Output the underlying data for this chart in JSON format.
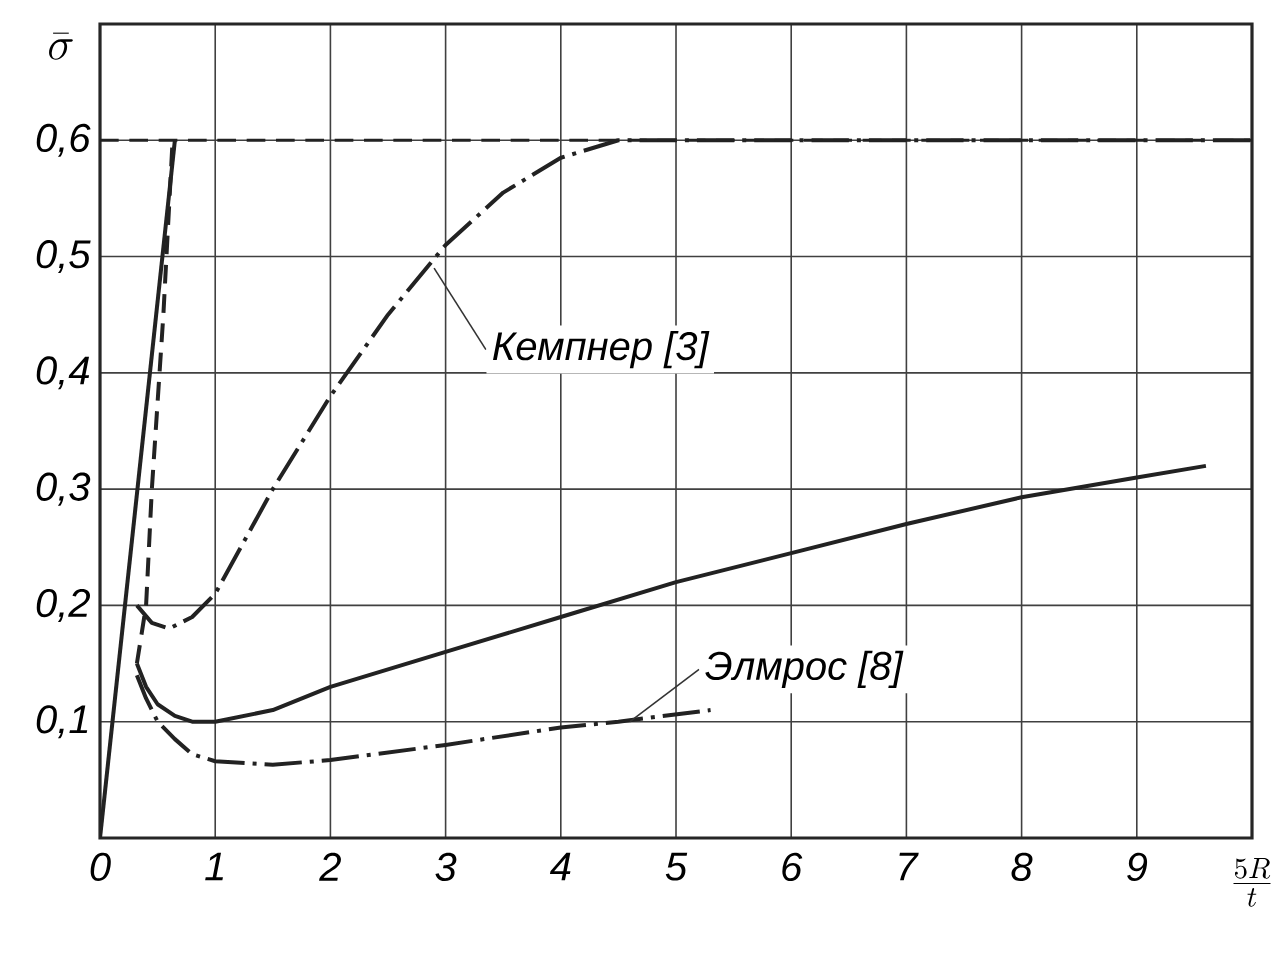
{
  "chart_data": {
    "type": "line",
    "xlabel": "\\frac{5R}{t}",
    "ylabel": "\\bar{\\sigma}",
    "xlim": [
      0,
      10
    ],
    "ylim": [
      0,
      0.7
    ],
    "xticks": [
      0,
      1,
      2,
      3,
      4,
      5,
      6,
      7,
      8,
      9,
      {
        "value": 10,
        "label": null
      }
    ],
    "yticks": [
      {
        "value": 0.1,
        "label": "0,1"
      },
      {
        "value": 0.2,
        "label": "0,2"
      },
      {
        "value": 0.3,
        "label": "0,3"
      },
      {
        "value": 0.4,
        "label": "0,4"
      },
      {
        "value": 0.5,
        "label": "0,5"
      },
      {
        "value": 0.6,
        "label": "0,6"
      },
      {
        "value": 0.7,
        "label": null
      }
    ],
    "grid": true,
    "ref_lines": [
      {
        "axis": "y",
        "value": 0.6,
        "line_style": "dashed",
        "color": "#222222"
      }
    ],
    "series": [
      {
        "color": "#222222",
        "line_style": "solid",
        "x": [
          0,
          0.65
        ],
        "values": [
          0,
          0.6
        ]
      },
      {
        "color": "#222222",
        "line_style": "dashed",
        "x": [
          0.32,
          0.4,
          0.45,
          0.55,
          0.63
        ],
        "values": [
          0.15,
          0.2,
          0.3,
          0.45,
          0.6
        ]
      },
      {
        "color": "#222222",
        "line_style": "dashdot",
        "x": [
          0.32,
          0.45,
          0.6,
          0.8,
          1,
          1.5,
          2,
          2.5,
          3,
          3.5,
          4,
          4.5,
          5,
          6,
          7,
          8,
          9,
          10
        ],
        "values": [
          0.2,
          0.185,
          0.18,
          0.19,
          0.21,
          0.3,
          0.38,
          0.45,
          0.51,
          0.555,
          0.585,
          0.6,
          0.6,
          0.6,
          0.6,
          0.6,
          0.6,
          0.6
        ]
      },
      {
        "color": "#222222",
        "line_style": "solid",
        "x": [
          0.32,
          0.4,
          0.5,
          0.65,
          0.8,
          1,
          1.5,
          2,
          3,
          4,
          5,
          6,
          7,
          8,
          9,
          9.6
        ],
        "values": [
          0.15,
          0.13,
          0.115,
          0.105,
          0.1,
          0.1,
          0.11,
          0.13,
          0.16,
          0.19,
          0.22,
          0.245,
          0.27,
          0.293,
          0.31,
          0.32
        ]
      },
      {
        "color": "#222222",
        "line_style": "dashdot",
        "x": [
          0.32,
          0.4,
          0.5,
          0.65,
          0.8,
          1,
          1.5,
          2,
          3,
          4,
          4.5,
          5.3
        ],
        "values": [
          0.14,
          0.12,
          0.1,
          0.085,
          0.072,
          0.066,
          0.063,
          0.067,
          0.08,
          0.095,
          0.1,
          0.11
        ]
      }
    ],
    "annotations": [
      {
        "text": "Кемпнер [3]",
        "x": 2.9,
        "y": 0.49
      },
      {
        "text": "Элмрос [8]",
        "x": 4.6,
        "y": 0.1
      }
    ]
  }
}
